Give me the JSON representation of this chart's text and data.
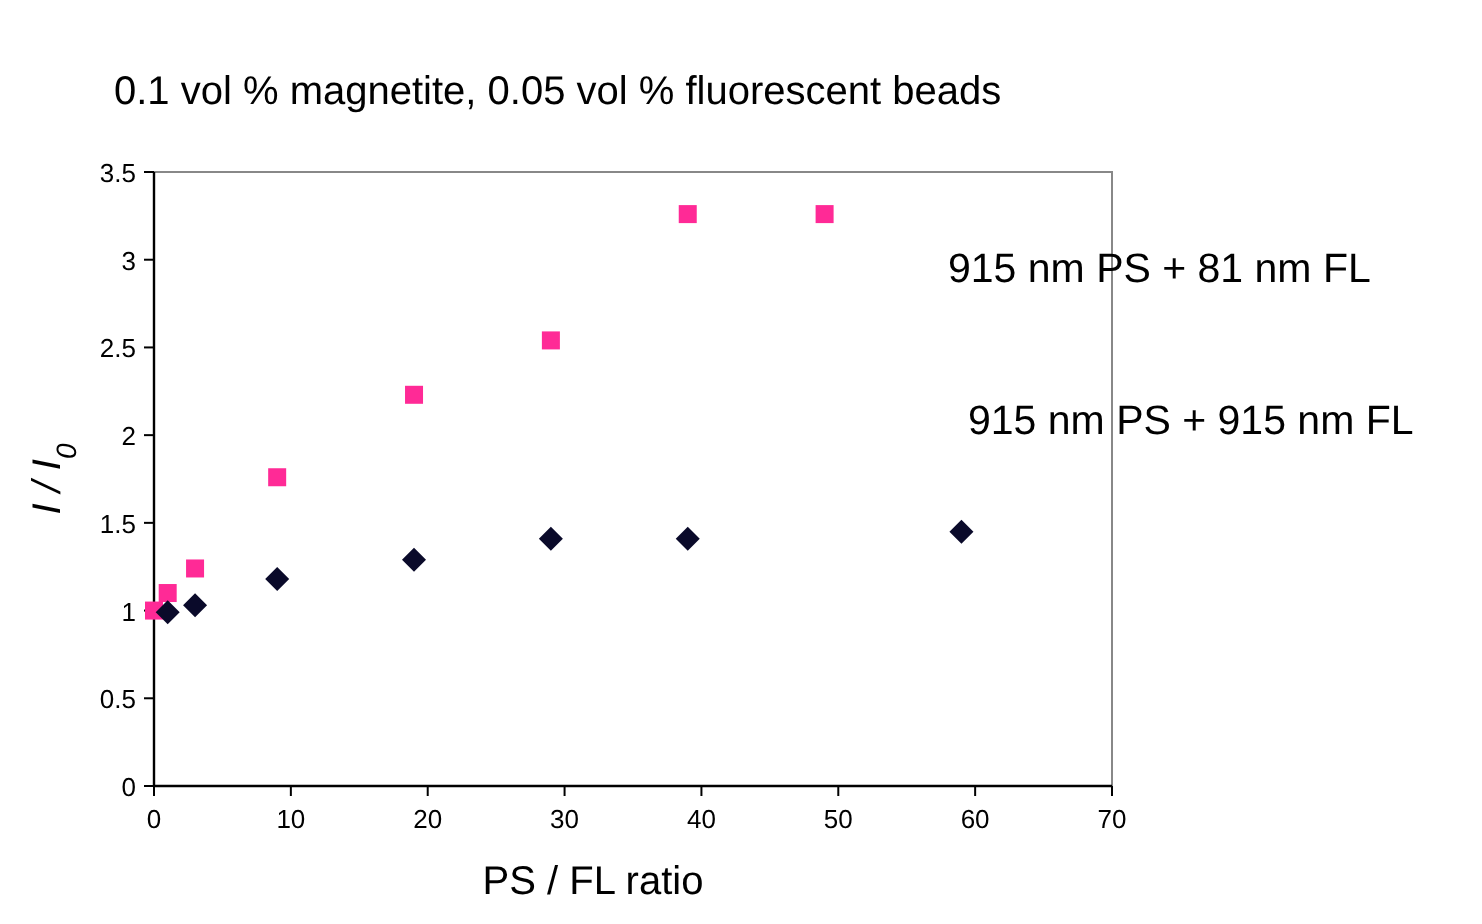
{
  "chart_data": {
    "type": "scatter",
    "title": "0.1 vol % magnetite, 0.05 vol % fluorescent beads",
    "xlabel": "PS / FL ratio",
    "ylabel": "I / I$_{0}$",
    "xlim": [
      0,
      70
    ],
    "xticks": [
      0,
      10,
      20,
      30,
      40,
      50,
      60,
      70
    ],
    "ylim": [
      0,
      3.5
    ],
    "yticks": [
      0,
      0.5,
      1,
      1.5,
      2,
      2.5,
      3,
      3.5
    ],
    "grid": false,
    "series": [
      {
        "name": "915 nm PS + 81 nm FL",
        "color": "#ff2a96",
        "marker": "square",
        "x": [
          0,
          1,
          3,
          9,
          19,
          29,
          39,
          49
        ],
        "values": [
          1.0,
          1.1,
          1.24,
          1.76,
          2.23,
          2.54,
          3.26,
          3.26
        ]
      },
      {
        "name": "915 nm PS + 915 nm FL",
        "color": "#0a0a2a",
        "marker": "diamond",
        "x": [
          1,
          3,
          9,
          19,
          29,
          39,
          59
        ],
        "values": [
          0.99,
          1.03,
          1.18,
          1.29,
          1.41,
          1.41,
          1.45
        ]
      }
    ]
  }
}
